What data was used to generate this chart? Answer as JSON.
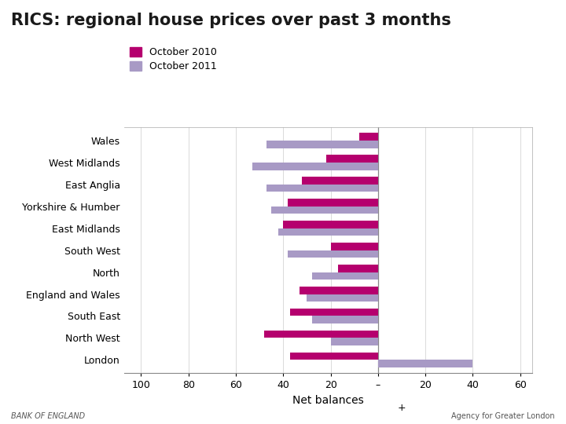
{
  "title": "RICS: regional house prices over past 3 months",
  "regions": [
    "Wales",
    "West Midlands",
    "East Anglia",
    "Yorkshire & Humber",
    "East Midlands",
    "South West",
    "North",
    "England and Wales",
    "South East",
    "North West",
    "London"
  ],
  "oct2010": [
    -8,
    -22,
    -32,
    -38,
    -40,
    -20,
    -17,
    -33,
    -37,
    -48,
    -37
  ],
  "oct2011": [
    -47,
    -53,
    -47,
    -45,
    -42,
    -38,
    -28,
    -30,
    -28,
    -20,
    40
  ],
  "color_2010": "#b5006e",
  "color_2011": "#a89ac5",
  "xlabel": "Net balances",
  "legend_2010": "October 2010",
  "legend_2011": "October 2011",
  "xlim": [
    -107,
    65
  ],
  "xticks": [
    -100,
    -80,
    -60,
    -40,
    -20,
    0,
    20,
    40,
    60
  ],
  "footer_left": "BANK OF ENGLAND",
  "footer_right": "Agency for Greater London",
  "bg_color": "#ffffff"
}
